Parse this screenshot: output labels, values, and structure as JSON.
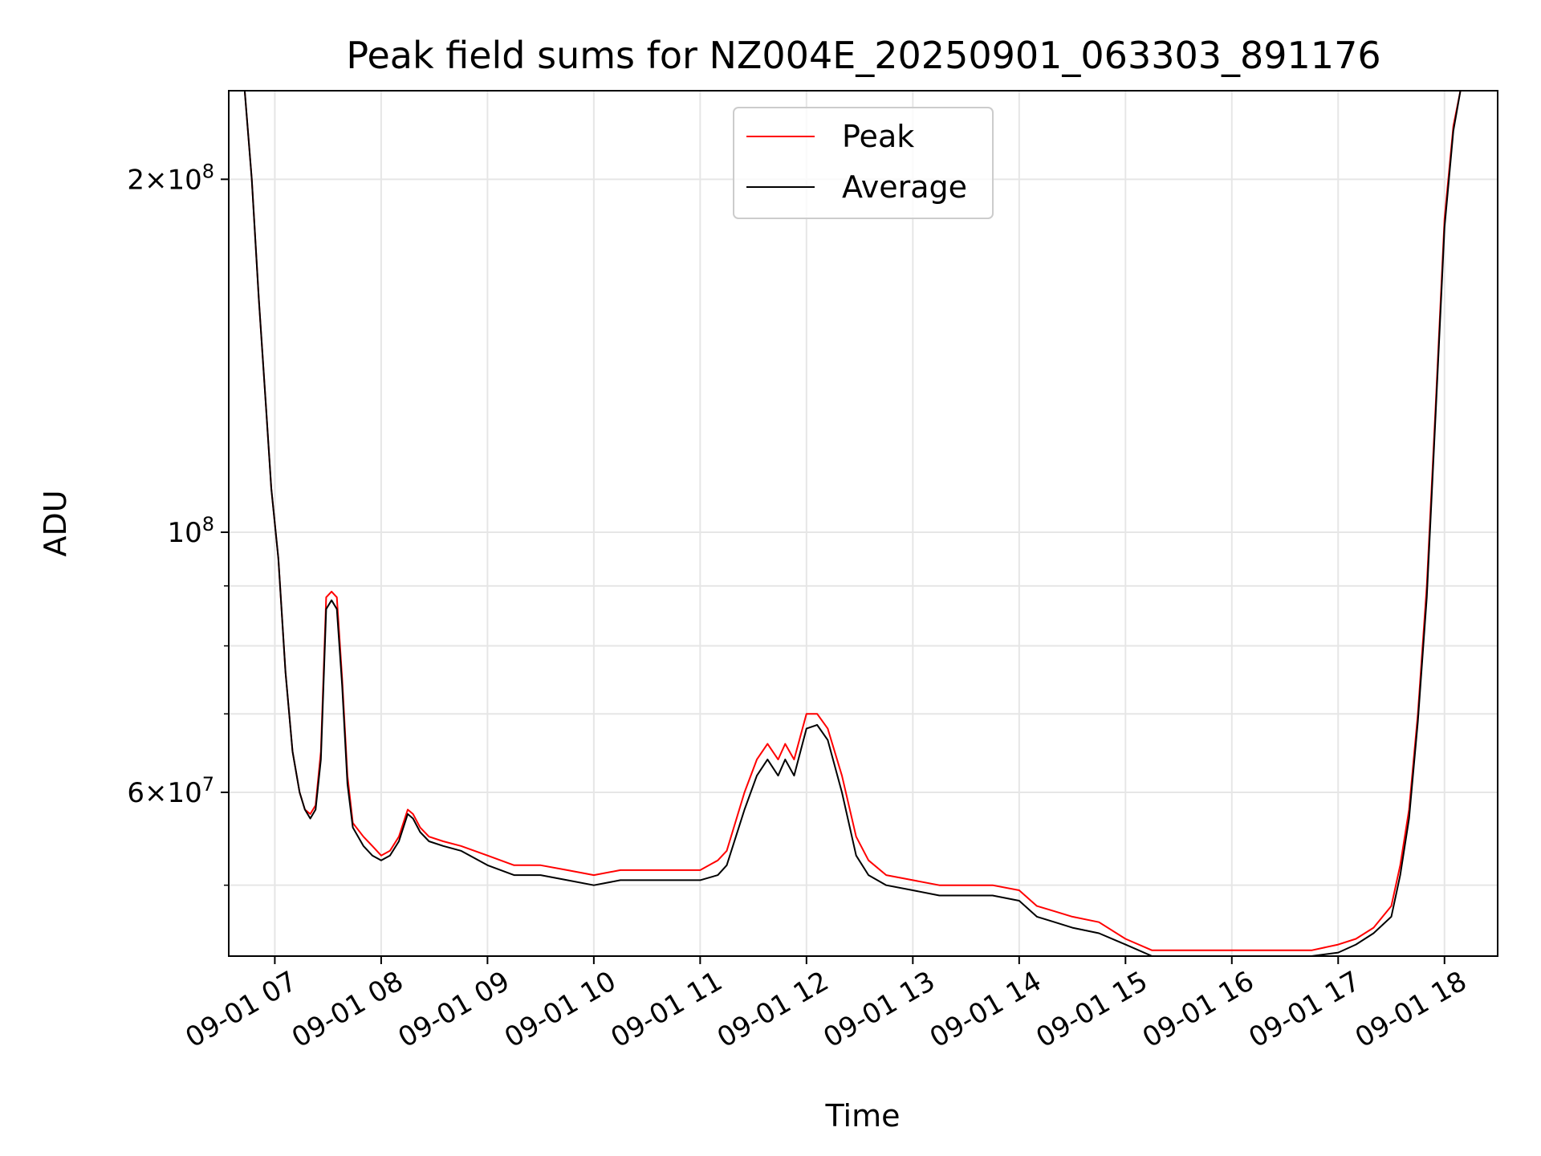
{
  "chart_data": {
    "type": "line",
    "title": "Peak field sums for NZ004E_20250901_063303_891176",
    "xlabel": "Time",
    "ylabel": "ADU",
    "x_scale": "time",
    "y_scale": "log",
    "xlim": [
      "2025-09-01 06:34",
      "2025-09-01 18:30"
    ],
    "ylim": [
      43500000,
      238000000
    ],
    "x_ticks": [
      {
        "value": "2025-09-01 07:00",
        "label": "09-01 07"
      },
      {
        "value": "2025-09-01 08:00",
        "label": "09-01 08"
      },
      {
        "value": "2025-09-01 09:00",
        "label": "09-01 09"
      },
      {
        "value": "2025-09-01 10:00",
        "label": "09-01 10"
      },
      {
        "value": "2025-09-01 11:00",
        "label": "09-01 11"
      },
      {
        "value": "2025-09-01 12:00",
        "label": "09-01 12"
      },
      {
        "value": "2025-09-01 13:00",
        "label": "09-01 13"
      },
      {
        "value": "2025-09-01 14:00",
        "label": "09-01 14"
      },
      {
        "value": "2025-09-01 15:00",
        "label": "09-01 15"
      },
      {
        "value": "2025-09-01 16:00",
        "label": "09-01 16"
      },
      {
        "value": "2025-09-01 17:00",
        "label": "09-01 17"
      },
      {
        "value": "2025-09-01 18:00",
        "label": "09-01 18"
      }
    ],
    "y_major_ticks": [
      {
        "value": 60000000,
        "base": "6",
        "mult": "×",
        "exp_base": "10",
        "exp": "7"
      },
      {
        "value": 100000000,
        "base": "",
        "mult": "",
        "exp_base": "10",
        "exp": "8"
      },
      {
        "value": 200000000,
        "base": "2",
        "mult": "×",
        "exp_base": "10",
        "exp": "8"
      }
    ],
    "y_minor_grid": [
      50000000,
      70000000,
      80000000,
      90000000
    ],
    "grid": true,
    "legend": {
      "placement": "upper center"
    },
    "series": [
      {
        "name": "Peak",
        "color": "#ff0000",
        "x": [
          "2025-09-01 06:43",
          "2025-09-01 06:47",
          "2025-09-01 06:51",
          "2025-09-01 06:55",
          "2025-09-01 06:58",
          "2025-09-01 07:02",
          "2025-09-01 07:06",
          "2025-09-01 07:10",
          "2025-09-01 07:14",
          "2025-09-01 07:17",
          "2025-09-01 07:20",
          "2025-09-01 07:23",
          "2025-09-01 07:26",
          "2025-09-01 07:29",
          "2025-09-01 07:32",
          "2025-09-01 07:35",
          "2025-09-01 07:38",
          "2025-09-01 07:41",
          "2025-09-01 07:44",
          "2025-09-01 07:50",
          "2025-09-01 07:55",
          "2025-09-01 08:00",
          "2025-09-01 08:05",
          "2025-09-01 08:10",
          "2025-09-01 08:15",
          "2025-09-01 08:18",
          "2025-09-01 08:22",
          "2025-09-01 08:27",
          "2025-09-01 08:35",
          "2025-09-01 08:45",
          "2025-09-01 09:00",
          "2025-09-01 09:15",
          "2025-09-01 09:30",
          "2025-09-01 09:45",
          "2025-09-01 10:00",
          "2025-09-01 10:15",
          "2025-09-01 10:30",
          "2025-09-01 10:45",
          "2025-09-01 11:00",
          "2025-09-01 11:10",
          "2025-09-01 11:15",
          "2025-09-01 11:25",
          "2025-09-01 11:32",
          "2025-09-01 11:38",
          "2025-09-01 11:44",
          "2025-09-01 11:48",
          "2025-09-01 11:53",
          "2025-09-01 12:00",
          "2025-09-01 12:06",
          "2025-09-01 12:12",
          "2025-09-01 12:20",
          "2025-09-01 12:28",
          "2025-09-01 12:35",
          "2025-09-01 12:45",
          "2025-09-01 13:00",
          "2025-09-01 13:15",
          "2025-09-01 13:30",
          "2025-09-01 13:45",
          "2025-09-01 14:00",
          "2025-09-01 14:10",
          "2025-09-01 14:20",
          "2025-09-01 14:30",
          "2025-09-01 14:45",
          "2025-09-01 15:00",
          "2025-09-01 15:15",
          "2025-09-01 15:30",
          "2025-09-01 15:45",
          "2025-09-01 16:00",
          "2025-09-01 16:15",
          "2025-09-01 16:30",
          "2025-09-01 16:45",
          "2025-09-01 17:00",
          "2025-09-01 17:10",
          "2025-09-01 17:20",
          "2025-09-01 17:30",
          "2025-09-01 17:35",
          "2025-09-01 17:40",
          "2025-09-01 17:45",
          "2025-09-01 17:50",
          "2025-09-01 17:55",
          "2025-09-01 18:00",
          "2025-09-01 18:05",
          "2025-09-01 18:09"
        ],
        "values": [
          238000000,
          200000000,
          158000000,
          128000000,
          109000000,
          95000000,
          76000000,
          65000000,
          60000000,
          58000000,
          57500000,
          58500000,
          65000000,
          88000000,
          89000000,
          88000000,
          75000000,
          62000000,
          56500000,
          55000000,
          54000000,
          53000000,
          53500000,
          55000000,
          58000000,
          57500000,
          56000000,
          55000000,
          54500000,
          54000000,
          53000000,
          52000000,
          52000000,
          51500000,
          51000000,
          51500000,
          51500000,
          51500000,
          51500000,
          52500000,
          53500000,
          60000000,
          64000000,
          66000000,
          64000000,
          66000000,
          64000000,
          70000000,
          70000000,
          68000000,
          62000000,
          55000000,
          52500000,
          51000000,
          50500000,
          50000000,
          50000000,
          50000000,
          49500000,
          48000000,
          47500000,
          47000000,
          46500000,
          45000000,
          44000000,
          44000000,
          44000000,
          44000000,
          44000000,
          44000000,
          44000000,
          44500000,
          45000000,
          46000000,
          48000000,
          52000000,
          58000000,
          70000000,
          90000000,
          128000000,
          185000000,
          222000000,
          238000000
        ]
      },
      {
        "name": "Average",
        "color": "#000000",
        "x": [
          "2025-09-01 06:43",
          "2025-09-01 06:47",
          "2025-09-01 06:51",
          "2025-09-01 06:55",
          "2025-09-01 06:58",
          "2025-09-01 07:02",
          "2025-09-01 07:06",
          "2025-09-01 07:10",
          "2025-09-01 07:14",
          "2025-09-01 07:17",
          "2025-09-01 07:20",
          "2025-09-01 07:23",
          "2025-09-01 07:26",
          "2025-09-01 07:29",
          "2025-09-01 07:32",
          "2025-09-01 07:35",
          "2025-09-01 07:38",
          "2025-09-01 07:41",
          "2025-09-01 07:44",
          "2025-09-01 07:50",
          "2025-09-01 07:55",
          "2025-09-01 08:00",
          "2025-09-01 08:05",
          "2025-09-01 08:10",
          "2025-09-01 08:15",
          "2025-09-01 08:18",
          "2025-09-01 08:22",
          "2025-09-01 08:27",
          "2025-09-01 08:35",
          "2025-09-01 08:45",
          "2025-09-01 09:00",
          "2025-09-01 09:15",
          "2025-09-01 09:30",
          "2025-09-01 09:45",
          "2025-09-01 10:00",
          "2025-09-01 10:15",
          "2025-09-01 10:30",
          "2025-09-01 10:45",
          "2025-09-01 11:00",
          "2025-09-01 11:10",
          "2025-09-01 11:15",
          "2025-09-01 11:25",
          "2025-09-01 11:32",
          "2025-09-01 11:38",
          "2025-09-01 11:44",
          "2025-09-01 11:48",
          "2025-09-01 11:53",
          "2025-09-01 12:00",
          "2025-09-01 12:06",
          "2025-09-01 12:12",
          "2025-09-01 12:20",
          "2025-09-01 12:28",
          "2025-09-01 12:35",
          "2025-09-01 12:45",
          "2025-09-01 13:00",
          "2025-09-01 13:15",
          "2025-09-01 13:30",
          "2025-09-01 13:45",
          "2025-09-01 14:00",
          "2025-09-01 14:10",
          "2025-09-01 14:20",
          "2025-09-01 14:30",
          "2025-09-01 14:45",
          "2025-09-01 15:00",
          "2025-09-01 15:15",
          "2025-09-01 15:30",
          "2025-09-01 15:45",
          "2025-09-01 16:00",
          "2025-09-01 16:15",
          "2025-09-01 16:30",
          "2025-09-01 16:45",
          "2025-09-01 17:00",
          "2025-09-01 17:10",
          "2025-09-01 17:20",
          "2025-09-01 17:30",
          "2025-09-01 17:35",
          "2025-09-01 17:40",
          "2025-09-01 17:45",
          "2025-09-01 17:50",
          "2025-09-01 17:55",
          "2025-09-01 18:00",
          "2025-09-01 18:05",
          "2025-09-01 18:09"
        ],
        "values": [
          238000000,
          200000000,
          158000000,
          128000000,
          109000000,
          95000000,
          76000000,
          65000000,
          60000000,
          58000000,
          57000000,
          58000000,
          64000000,
          86000000,
          87500000,
          86000000,
          74000000,
          61000000,
          56000000,
          54000000,
          53000000,
          52500000,
          53000000,
          54500000,
          57500000,
          57000000,
          55500000,
          54500000,
          54000000,
          53500000,
          52000000,
          51000000,
          51000000,
          50500000,
          50000000,
          50500000,
          50500000,
          50500000,
          50500000,
          51000000,
          52000000,
          58000000,
          62000000,
          64000000,
          62000000,
          64000000,
          62000000,
          68000000,
          68500000,
          66500000,
          60000000,
          53000000,
          51000000,
          50000000,
          49500000,
          49000000,
          49000000,
          49000000,
          48500000,
          47000000,
          46500000,
          46000000,
          45500000,
          44500000,
          43500000,
          43500000,
          43500000,
          43500000,
          43500000,
          43500000,
          43500000,
          43800000,
          44500000,
          45500000,
          47000000,
          51000000,
          57000000,
          69000000,
          88000000,
          126000000,
          182000000,
          220000000,
          238000000
        ]
      }
    ]
  }
}
